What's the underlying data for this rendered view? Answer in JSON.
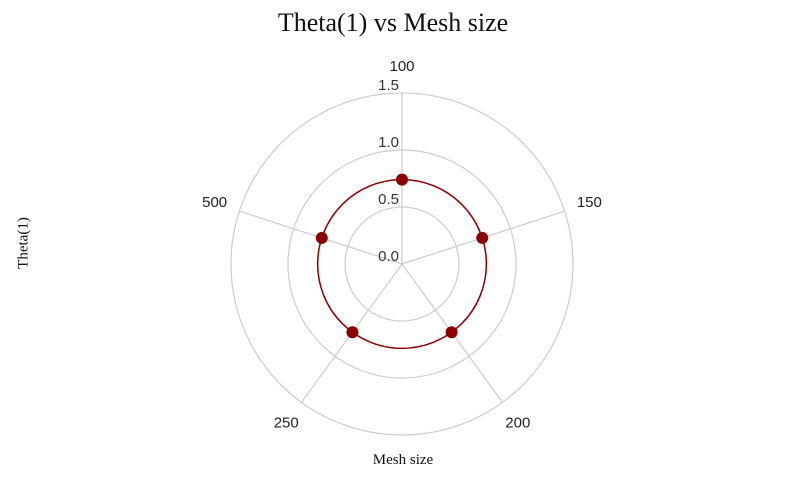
{
  "chart_data": {
    "type": "radar",
    "title": "Theta(1) vs Mesh size",
    "xlabel": "Mesh size",
    "ylabel": "Theta(1)",
    "categories": [
      "100",
      "150",
      "200",
      "250",
      "500"
    ],
    "series": [
      {
        "values": [
          0.74,
          0.74,
          0.74,
          0.74,
          0.74
        ],
        "color": "#8b0000"
      }
    ],
    "rlim": [
      0,
      1.5
    ],
    "rticks": [
      "0.0",
      "0.5",
      "1.0",
      "1.5"
    ],
    "grid": true
  }
}
